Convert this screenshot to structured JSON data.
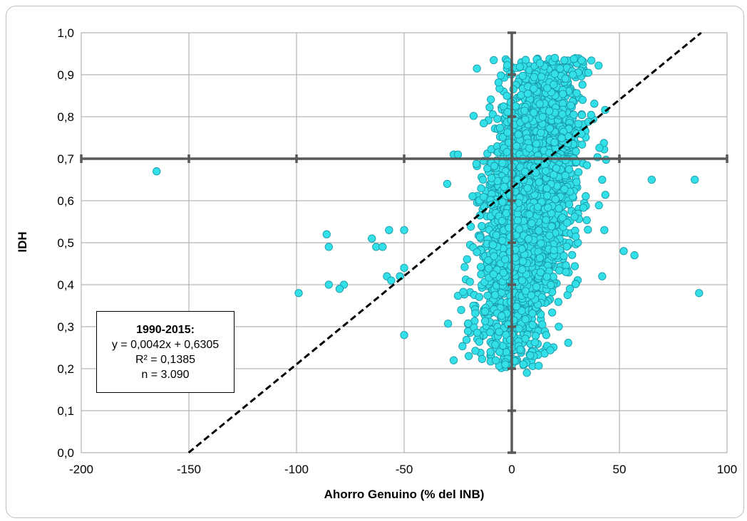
{
  "chart_data": {
    "type": "scatter",
    "title": "",
    "xlabel": "Ahorro Genuino (% del INB)",
    "ylabel": "IDH",
    "xlim": [
      -200,
      100
    ],
    "ylim": [
      0.0,
      1.0
    ],
    "x_ticks": [
      "-200",
      "-150",
      "-100",
      "-50",
      "0",
      "50",
      "100"
    ],
    "y_ticks": [
      "0,0",
      "0,1",
      "0,2",
      "0,3",
      "0,4",
      "0,5",
      "0,6",
      "0,7",
      "0,8",
      "0,9",
      "1,0"
    ],
    "grid": true,
    "reference_lines": {
      "x": 0,
      "y": 0.7
    },
    "marker_color": "#33e0e8",
    "marker_edge_color": "#1a9aa8",
    "trendline": {
      "slope": 0.0042,
      "intercept": 0.6305,
      "style": "dashed"
    },
    "annotation": {
      "title": "1990-2015:",
      "equation": "y = 0,0042x + 0,6305",
      "r2": "R² = 0,1385",
      "n": "n = 3.090"
    },
    "outliers": [
      {
        "x": -165,
        "y": 0.67
      },
      {
        "x": -99,
        "y": 0.38
      },
      {
        "x": -86,
        "y": 0.52
      },
      {
        "x": -85,
        "y": 0.49
      },
      {
        "x": -85,
        "y": 0.4
      },
      {
        "x": -78,
        "y": 0.4
      },
      {
        "x": -80,
        "y": 0.39
      },
      {
        "x": -65,
        "y": 0.51
      },
      {
        "x": -63,
        "y": 0.49
      },
      {
        "x": -60,
        "y": 0.49
      },
      {
        "x": -57,
        "y": 0.53
      },
      {
        "x": -58,
        "y": 0.42
      },
      {
        "x": -56,
        "y": 0.41
      },
      {
        "x": -52,
        "y": 0.42
      },
      {
        "x": -50,
        "y": 0.53
      },
      {
        "x": -50,
        "y": 0.44
      },
      {
        "x": -50,
        "y": 0.28
      },
      {
        "x": 52,
        "y": 0.48
      },
      {
        "x": 57,
        "y": 0.47
      },
      {
        "x": 65,
        "y": 0.65
      },
      {
        "x": 85,
        "y": 0.65
      },
      {
        "x": 87,
        "y": 0.38
      },
      {
        "x": 42,
        "y": 0.42
      },
      {
        "x": 43,
        "y": 0.53
      },
      {
        "x": 42,
        "y": 0.65
      },
      {
        "x": -27,
        "y": 0.71
      },
      {
        "x": -25,
        "y": 0.71
      },
      {
        "x": -27,
        "y": 0.22
      },
      {
        "x": 7,
        "y": 0.19
      },
      {
        "x": -3,
        "y": 0.21
      },
      {
        "x": -20,
        "y": 0.23
      },
      {
        "x": -30,
        "y": 0.64
      },
      {
        "x": 20,
        "y": 0.94
      },
      {
        "x": 27,
        "y": 0.39
      },
      {
        "x": 16,
        "y": 0.28
      }
    ],
    "cluster": {
      "x_center": 8,
      "x_spread": 14,
      "y_center": 0.6,
      "y_spread": 0.17,
      "count": 3055
    }
  }
}
